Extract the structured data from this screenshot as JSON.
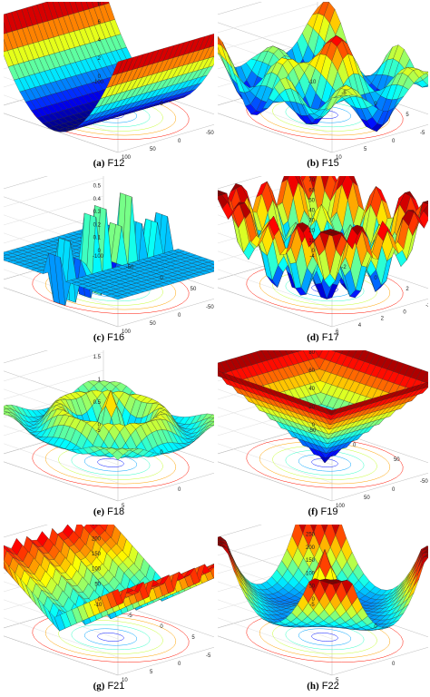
{
  "figure": {
    "panels": [
      {
        "letter": "(a)",
        "name": "F12",
        "zticks": [
          "10",
          "8",
          "6",
          "4",
          "2",
          "0"
        ],
        "scale": "x 10⁸",
        "xticks": [
          "100",
          "0",
          "-100"
        ],
        "yticks": [
          "100",
          "50",
          "0",
          "-50",
          "-100"
        ]
      },
      {
        "letter": "(b)",
        "name": "F15",
        "zticks": [],
        "scale": "",
        "xticks": [
          "10",
          "5",
          "0",
          "-5",
          "-10"
        ],
        "yticks": [
          "10",
          "5",
          "0",
          "-5",
          "-10"
        ]
      },
      {
        "letter": "(c)",
        "name": "F16",
        "zticks": [
          "0.7",
          "0.6",
          "0.5",
          "0.4",
          "0.3",
          "0.2",
          "0.1",
          "0"
        ],
        "scale": "",
        "xticks": [
          "100",
          "50",
          "0",
          "-50",
          "-100"
        ],
        "yticks": [
          "100",
          "50",
          "0",
          "-50",
          "-100"
        ]
      },
      {
        "letter": "(d)",
        "name": "F17",
        "zticks": [
          "90",
          "80",
          "70",
          "60",
          "50",
          "40",
          "30",
          "20",
          "10",
          "0"
        ],
        "scale": "",
        "xticks": [
          "4",
          "2",
          "0",
          "-2",
          "-4"
        ],
        "yticks": [
          "6",
          "4",
          "2",
          "0",
          "-2",
          "-4"
        ]
      },
      {
        "letter": "(e)",
        "name": "F18",
        "zticks": [
          "2",
          "1.5",
          "1",
          "0.5",
          "0"
        ],
        "scale": "",
        "xticks": [
          "5",
          "0",
          "-5"
        ],
        "yticks": [
          "5",
          "0",
          "-5"
        ]
      },
      {
        "letter": "(f)",
        "name": "F19",
        "zticks": [
          "100",
          "80",
          "60",
          "40",
          "20",
          "0"
        ],
        "scale": "",
        "xticks": [
          "100",
          "50",
          "0",
          "-50"
        ],
        "yticks": [
          "100",
          "50",
          "0",
          "-50",
          "-100"
        ]
      },
      {
        "letter": "(g)",
        "name": "F21",
        "zticks": [
          "300",
          "250",
          "200",
          "150",
          "100",
          "50",
          "0"
        ],
        "scale": "",
        "xticks": [
          "10",
          "5",
          "0",
          "-5",
          "-10"
        ],
        "yticks": [
          "10",
          "5",
          "0",
          "-5",
          "-10"
        ]
      },
      {
        "letter": "(h)",
        "name": "F22",
        "zticks": [
          "350",
          "300",
          "250",
          "200",
          "150",
          "100",
          "50",
          "0"
        ],
        "scale": "",
        "xticks": [
          "5",
          "0",
          "-5"
        ],
        "yticks": [
          "5",
          "0",
          "-5"
        ]
      }
    ]
  }
}
